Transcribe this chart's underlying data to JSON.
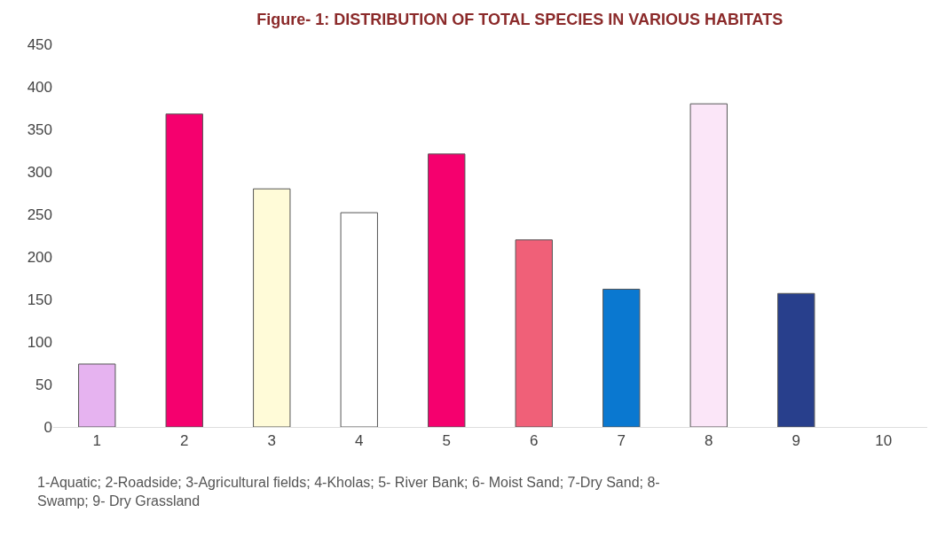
{
  "chart_data": {
    "type": "bar",
    "title": "Figure- 1: DISTRIBUTION OF TOTAL SPECIES IN VARIOUS HABITATS",
    "categories": [
      "1",
      "2",
      "3",
      "4",
      "5",
      "6",
      "7",
      "8",
      "9",
      "10"
    ],
    "values": [
      74,
      368,
      280,
      252,
      321,
      220,
      162,
      380,
      157,
      null
    ],
    "colors": [
      "#e6b3f0",
      "#f5006e",
      "#fffbd8",
      "#ffffff",
      "#f5006e",
      "#f06078",
      "#0a78d0",
      "#fbe6f8",
      "#283f8c",
      "#ffffff"
    ],
    "ylim": [
      0,
      450
    ],
    "yticks": [
      0,
      50,
      100,
      150,
      200,
      250,
      300,
      350,
      400,
      450
    ],
    "legend": false,
    "annotations": [
      "1-Aquatic; 2-Roadside; 3-Agricultural fields; 4-Kholas; 5- River Bank; 6- Moist Sand; 7-Dry Sand; 8- Swamp; 9- Dry Grassland"
    ]
  }
}
